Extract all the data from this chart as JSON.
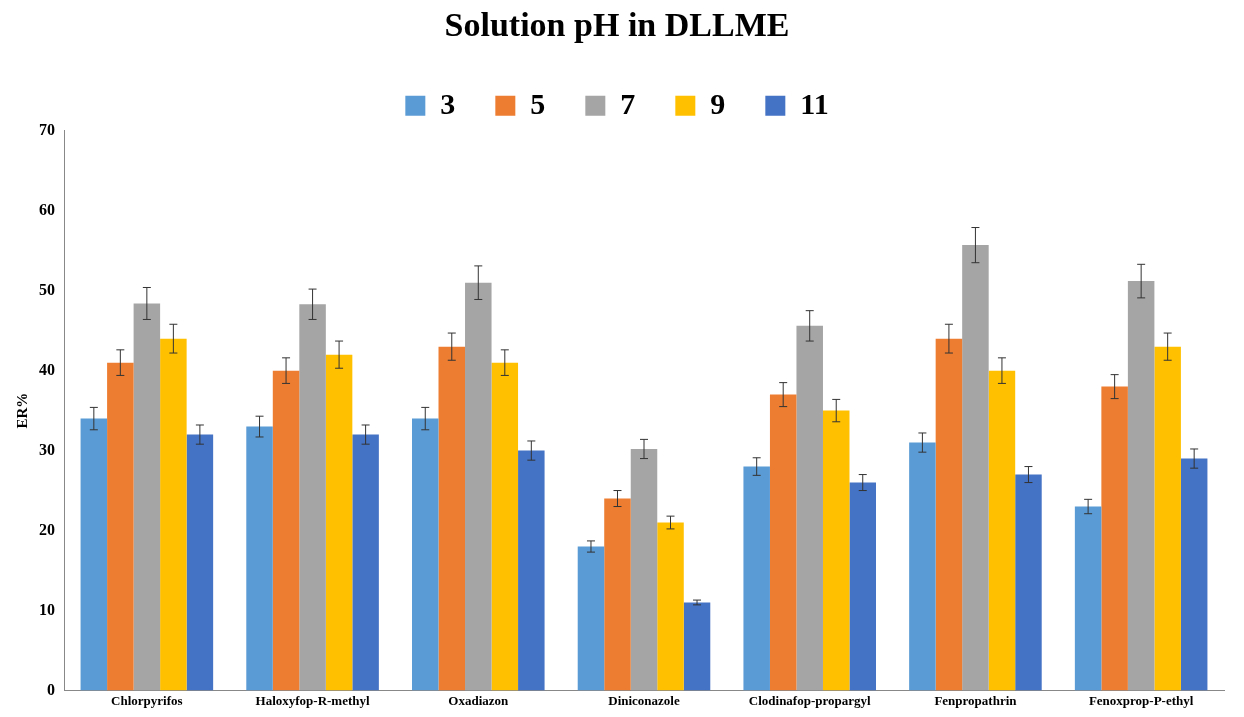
{
  "chart_data": {
    "type": "bar",
    "legend_title": "Solution pH in DLLME",
    "ylabel": "ER%",
    "categories": [
      "Chlorpyrifos",
      "Haloxyfop-R-methyl",
      "Oxadiazon",
      "Diniconazole",
      "Clodinafop-propargyl",
      "Fenpropathrin",
      "Fenoxprop-P-ethyl"
    ],
    "series": [
      {
        "name": "3",
        "color": "#5b9bd5",
        "values": [
          34,
          33,
          34,
          18,
          28,
          31,
          23
        ],
        "errors": [
          1.4,
          1.3,
          1.4,
          0.7,
          1.1,
          1.2,
          0.9
        ]
      },
      {
        "name": "5",
        "color": "#ed7d31",
        "values": [
          41,
          40,
          43,
          24,
          37,
          44,
          38
        ],
        "errors": [
          1.6,
          1.6,
          1.7,
          1,
          1.5,
          1.8,
          1.5
        ]
      },
      {
        "name": "7",
        "color": "#a5a5a5",
        "values": [
          48.4,
          48.3,
          51,
          30.2,
          45.6,
          55.7,
          51.2
        ],
        "errors": [
          2,
          1.9,
          2.1,
          1.2,
          1.9,
          2.2,
          2.1
        ]
      },
      {
        "name": "9",
        "color": "#ffc000",
        "values": [
          44,
          42,
          41,
          21,
          35,
          40,
          43
        ],
        "errors": [
          1.8,
          1.7,
          1.6,
          0.8,
          1.4,
          1.6,
          1.7
        ]
      },
      {
        "name": "11",
        "color": "#4472c4",
        "values": [
          32,
          32,
          30,
          11,
          26,
          27,
          29
        ],
        "errors": [
          1.2,
          1.2,
          1.2,
          0.3,
          1,
          1,
          1.2
        ]
      }
    ],
    "ylim": [
      0,
      70
    ],
    "yticks": [
      0,
      10,
      20,
      30,
      40,
      50,
      60,
      70
    ],
    "grid": false,
    "legend": "top"
  }
}
